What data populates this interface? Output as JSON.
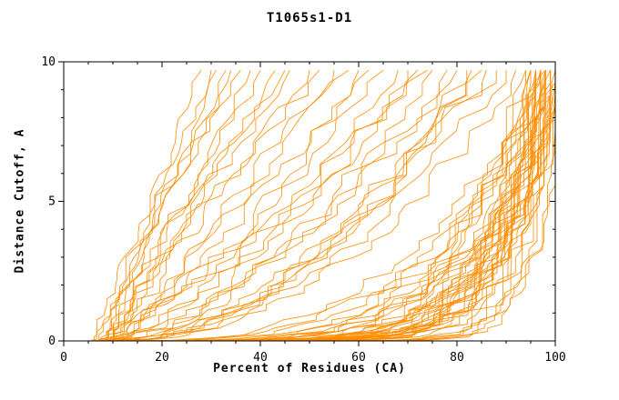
{
  "chart_data": {
    "type": "line",
    "title": "T1065s1-D1",
    "xlabel": "Percent of Residues (CA)",
    "ylabel": "Distance Cutoff, A",
    "xlim": [
      0,
      100
    ],
    "ylim": [
      0,
      10
    ],
    "x_major_ticks": [
      0,
      20,
      40,
      60,
      80,
      100
    ],
    "y_major_ticks": [
      0,
      5,
      10
    ],
    "x_minor_step": 5,
    "y_minor_step": 1,
    "line_color": "#ff8c00",
    "axis_color": "#000000",
    "y_top_data": 9.7,
    "curves": [
      [
        5,
        30,
        1.0
      ],
      [
        6,
        28,
        0.9
      ],
      [
        6,
        33,
        1.05
      ],
      [
        7,
        31,
        0.95
      ],
      [
        7,
        36,
        1.1
      ],
      [
        8,
        34,
        1.0
      ],
      [
        8,
        38,
        0.9
      ],
      [
        9,
        40,
        1.05
      ],
      [
        9,
        43,
        0.95
      ],
      [
        10,
        46,
        1.1
      ],
      [
        10,
        50,
        1.0
      ],
      [
        11,
        55,
        0.95
      ],
      [
        11,
        58,
        1.05
      ],
      [
        12,
        60,
        0.9
      ],
      [
        8,
        45,
        1.2
      ],
      [
        9,
        52,
        1.15
      ],
      [
        6,
        62,
        0.7
      ],
      [
        7,
        65,
        0.75
      ],
      [
        7,
        68,
        0.65
      ],
      [
        8,
        70,
        0.6
      ],
      [
        8,
        72,
        0.7
      ],
      [
        9,
        75,
        0.55
      ],
      [
        9,
        78,
        0.6
      ],
      [
        10,
        80,
        0.65
      ],
      [
        10,
        82,
        0.5
      ],
      [
        11,
        85,
        0.55
      ],
      [
        11,
        88,
        0.6
      ],
      [
        12,
        90,
        0.5
      ],
      [
        6,
        74,
        0.8
      ],
      [
        7,
        83,
        0.45
      ],
      [
        8,
        86,
        0.5
      ],
      [
        9,
        92,
        0.45
      ],
      [
        5,
        96,
        0.3
      ],
      [
        5,
        97,
        0.25
      ],
      [
        6,
        98,
        0.22
      ],
      [
        6,
        99,
        0.2
      ],
      [
        6,
        100,
        0.18
      ],
      [
        7,
        96,
        0.16
      ],
      [
        7,
        97,
        0.15
      ],
      [
        7,
        98,
        0.14
      ],
      [
        7,
        99,
        0.13
      ],
      [
        8,
        100,
        0.12
      ],
      [
        8,
        96,
        0.11
      ],
      [
        8,
        97,
        0.1
      ],
      [
        8,
        98,
        0.12
      ],
      [
        9,
        99,
        0.11
      ],
      [
        9,
        100,
        0.1
      ],
      [
        9,
        96,
        0.09
      ],
      [
        9,
        97,
        0.13
      ],
      [
        10,
        98,
        0.1
      ],
      [
        10,
        99,
        0.12
      ],
      [
        10,
        100,
        0.09
      ],
      [
        6,
        95,
        0.2
      ],
      [
        7,
        94,
        0.17
      ],
      [
        8,
        95,
        0.15
      ],
      [
        9,
        94,
        0.12
      ],
      [
        10,
        95,
        0.11
      ],
      [
        5,
        98,
        0.28
      ],
      [
        6,
        97,
        0.24
      ],
      [
        11,
        99,
        0.1
      ],
      [
        11,
        100,
        0.13
      ],
      [
        12,
        98,
        0.11
      ],
      [
        8,
        99,
        0.06
      ],
      [
        9,
        100,
        0.06
      ],
      [
        10,
        99,
        0.07
      ],
      [
        11,
        98,
        0.07
      ],
      [
        12,
        100,
        0.06
      ],
      [
        13,
        99,
        0.08
      ],
      [
        6,
        96,
        0.19
      ],
      [
        7,
        100,
        0.21
      ],
      [
        8,
        99,
        0.17
      ],
      [
        9,
        98,
        0.15
      ],
      [
        10,
        96,
        0.14
      ],
      [
        11,
        97,
        0.12
      ],
      [
        12,
        99,
        0.16
      ],
      [
        13,
        100,
        0.13
      ]
    ]
  }
}
